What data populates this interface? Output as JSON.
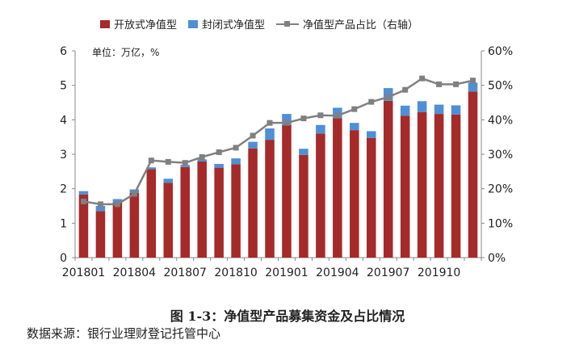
{
  "unit_note": "单位：万亿，%",
  "caption": "图 1-3：净值型产品募集资金及占比情况",
  "source": "数据来源：银行业理财登记托管中心",
  "colors": {
    "open": "#a52a2a",
    "closed": "#4f8fd6",
    "share": "#808080"
  },
  "chart_data": {
    "type": "bar",
    "stacked": true,
    "categories": [
      "201801",
      "201802",
      "201803",
      "201804",
      "201805",
      "201806",
      "201807",
      "201808",
      "201809",
      "201810",
      "201811",
      "201812",
      "201901",
      "201902",
      "201903",
      "201904",
      "201905",
      "201906",
      "201907",
      "201908",
      "201909",
      "201910",
      "201911",
      "201912"
    ],
    "x_tick_labels": [
      "201801",
      "201804",
      "201807",
      "201810",
      "201901",
      "201904",
      "201907",
      "201910"
    ],
    "series": [
      {
        "name": "开放式净值型",
        "type": "bar",
        "axis": "left",
        "values": [
          1.83,
          1.35,
          1.6,
          1.88,
          2.57,
          2.17,
          2.63,
          2.79,
          2.61,
          2.71,
          3.17,
          3.42,
          3.85,
          2.98,
          3.6,
          4.05,
          3.7,
          3.47,
          4.55,
          4.12,
          4.22,
          4.17,
          4.15,
          4.82
        ]
      },
      {
        "name": "封闭式净值型",
        "type": "bar",
        "axis": "left",
        "values": [
          0.1,
          0.15,
          0.1,
          0.1,
          0.05,
          0.12,
          0.06,
          0.06,
          0.11,
          0.17,
          0.19,
          0.33,
          0.32,
          0.18,
          0.25,
          0.3,
          0.21,
          0.2,
          0.37,
          0.29,
          0.32,
          0.27,
          0.27,
          0.26
        ]
      },
      {
        "name": "净值型产品占比（右轴）",
        "type": "line",
        "axis": "right",
        "values": [
          16.3,
          15.5,
          15.5,
          18.5,
          28.2,
          27.8,
          27.5,
          29.2,
          30.6,
          31.9,
          35.4,
          39.1,
          39.1,
          40.4,
          41.3,
          41.2,
          43.1,
          45.2,
          46.6,
          48.7,
          52.0,
          50.3,
          50.3,
          51.4
        ]
      }
    ],
    "y_left": {
      "min": 0,
      "max": 6,
      "ticks": [
        "0",
        "1",
        "2",
        "3",
        "4",
        "5",
        "6"
      ]
    },
    "y_right": {
      "min": 0,
      "max": 60,
      "ticks": [
        "0%",
        "10%",
        "20%",
        "30%",
        "40%",
        "50%",
        "60%"
      ]
    },
    "legend_position": "top",
    "grid": false
  }
}
